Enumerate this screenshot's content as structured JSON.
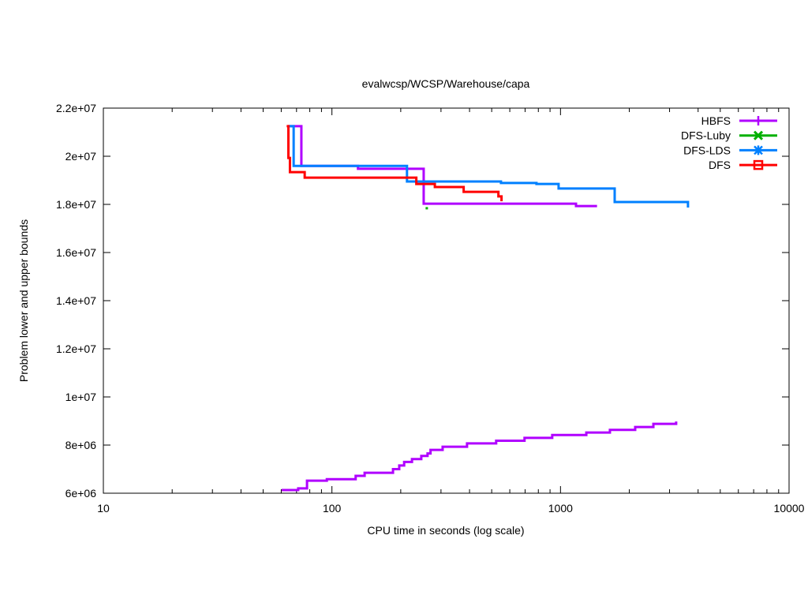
{
  "chart_data": {
    "type": "line",
    "title": "evalwcsp/WCSP/Warehouse/capa",
    "xlabel": "CPU time in seconds (log scale)",
    "ylabel": "Problem lower and upper bounds",
    "xscale": "log",
    "xlim": [
      10,
      10000
    ],
    "ylim": [
      6000000,
      22000000
    ],
    "xticks": [
      10,
      100,
      1000,
      10000
    ],
    "xtick_labels": [
      "10",
      "100",
      "1000",
      "10000"
    ],
    "yticks": [
      6000000,
      8000000,
      10000000,
      12000000,
      14000000,
      16000000,
      18000000,
      20000000,
      22000000
    ],
    "ytick_labels": [
      "6e+06",
      "8e+06",
      "1e+07",
      "1.2e+07",
      "1.4e+07",
      "1.6e+07",
      "1.8e+07",
      "2e+07",
      "2.2e+07"
    ],
    "grid": false,
    "legend_position": "top-right",
    "series": [
      {
        "name": "HBFS",
        "color": "#b000ff",
        "marker": "plus",
        "style": "steps",
        "upper": [
          [
            64.5,
            21250000
          ],
          [
            73.5,
            19600000
          ],
          [
            130,
            19480000
          ],
          [
            252,
            18030000
          ],
          [
            1169,
            17930000
          ],
          [
            1445,
            17930000
          ]
        ],
        "lower": [
          [
            60.3,
            6130000
          ],
          [
            71.2,
            6200000
          ],
          [
            77.8,
            6520000
          ],
          [
            95,
            6580000
          ],
          [
            127,
            6720000
          ],
          [
            139,
            6850000
          ],
          [
            185,
            7000000
          ],
          [
            197,
            7150000
          ],
          [
            207,
            7300000
          ],
          [
            224,
            7420000
          ],
          [
            246,
            7550000
          ],
          [
            262,
            7650000
          ],
          [
            270,
            7800000
          ],
          [
            305,
            7930000
          ],
          [
            390,
            8070000
          ],
          [
            523,
            8180000
          ],
          [
            696,
            8300000
          ],
          [
            920,
            8420000
          ],
          [
            1297,
            8520000
          ],
          [
            1645,
            8630000
          ],
          [
            2122,
            8750000
          ],
          [
            2549,
            8880000
          ],
          [
            3206,
            8980000
          ]
        ]
      },
      {
        "name": "DFS-Luby",
        "color": "#00b000",
        "marker": "x",
        "style": "steps",
        "upper": [
          [
            260,
            17840000
          ]
        ]
      },
      {
        "name": "DFS-LDS",
        "color": "#0080ff",
        "marker": "star",
        "style": "steps",
        "upper": [
          [
            64.5,
            21250000
          ],
          [
            68,
            19600000
          ],
          [
            213,
            18950000
          ],
          [
            549,
            18890000
          ],
          [
            785,
            18850000
          ],
          [
            981,
            18660000
          ],
          [
            1726,
            18100000
          ],
          [
            3612,
            17870000
          ]
        ]
      },
      {
        "name": "DFS",
        "color": "#ff0000",
        "marker": "square",
        "style": "steps",
        "upper": [
          [
            63.4,
            21250000
          ],
          [
            64.5,
            19930000
          ],
          [
            65.5,
            19340000
          ],
          [
            76,
            19110000
          ],
          [
            234,
            18850000
          ],
          [
            282,
            18720000
          ],
          [
            377,
            18520000
          ],
          [
            535,
            18330000
          ],
          [
            552,
            18130000
          ]
        ]
      }
    ]
  }
}
